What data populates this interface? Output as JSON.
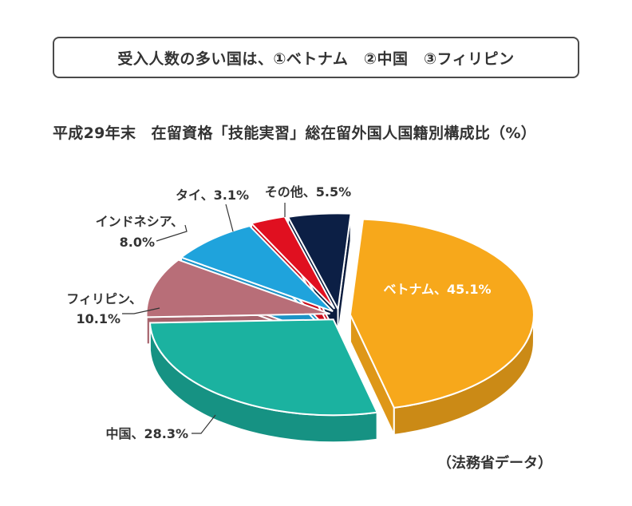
{
  "header": {
    "headline": "受入人数の多い国は、①ベトナム　②中国　③フィリピン"
  },
  "chart_data": {
    "type": "pie",
    "title": "平成29年末　在留資格「技能実習」総在留外国人国籍別構成比（%）",
    "source": "（法務省データ）",
    "slices": [
      {
        "label": "ベトナム、45.1%",
        "name": "ベトナム",
        "value": 45.1,
        "color": "#f7a81b"
      },
      {
        "label": "中国、28.3%",
        "name": "中国",
        "value": 28.3,
        "color": "#1bb2a0"
      },
      {
        "label": "フィリピン、10.1%",
        "name": "フィリピン",
        "value": 10.1,
        "color": "#b86e78"
      },
      {
        "label": "インドネシア、8.0%",
        "name": "インドネシア",
        "value": 8.0,
        "color": "#1fa3dc"
      },
      {
        "label": "タイ、3.1%",
        "name": "タイ",
        "value": 3.1,
        "color": "#e01020"
      },
      {
        "label": "その他、5.5%",
        "name": "その他",
        "value": 5.5,
        "color": "#0c1f45"
      }
    ]
  }
}
